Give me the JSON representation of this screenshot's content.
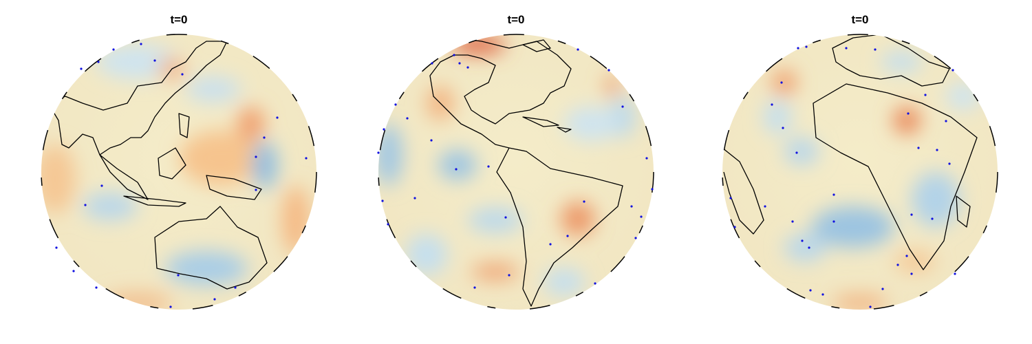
{
  "panels": [
    {
      "title": "t=0"
    },
    {
      "title": "t=0"
    },
    {
      "title": "t=0"
    }
  ]
}
